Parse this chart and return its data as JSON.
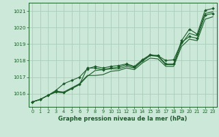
{
  "title": "Graphe pression niveau de la mer (hPa)",
  "bg_color": "#cce8d8",
  "grid_color": "#aaccb8",
  "line_color": "#1a5c28",
  "marker_color": "#1a5c28",
  "xlim": [
    -0.5,
    23.5
  ],
  "ylim": [
    1015.2,
    1021.5
  ],
  "yticks": [
    1016,
    1017,
    1018,
    1019,
    1020,
    1021
  ],
  "xticks": [
    0,
    1,
    2,
    3,
    4,
    5,
    6,
    7,
    8,
    9,
    10,
    11,
    12,
    13,
    14,
    15,
    16,
    17,
    18,
    19,
    20,
    21,
    22,
    23
  ],
  "series": [
    [
      1015.5,
      1015.65,
      1015.9,
      1016.1,
      1016.05,
      1016.3,
      1016.55,
      1017.55,
      1017.55,
      1017.45,
      1017.55,
      1017.6,
      1017.75,
      1017.6,
      1018.0,
      1018.35,
      1018.3,
      1017.8,
      1017.8,
      1019.2,
      1019.9,
      1019.6,
      1021.05,
      1021.15
    ],
    [
      1015.5,
      1015.65,
      1015.9,
      1016.1,
      1016.05,
      1016.3,
      1016.55,
      1017.05,
      1017.4,
      1017.45,
      1017.5,
      1017.5,
      1017.65,
      1017.55,
      1017.95,
      1018.3,
      1018.25,
      1017.75,
      1017.75,
      1019.0,
      1019.65,
      1019.5,
      1020.85,
      1020.95
    ],
    [
      1015.5,
      1015.65,
      1015.9,
      1016.15,
      1016.1,
      1016.35,
      1016.6,
      1017.1,
      1017.1,
      1017.15,
      1017.35,
      1017.4,
      1017.55,
      1017.45,
      1017.85,
      1018.15,
      1018.1,
      1017.65,
      1017.65,
      1018.85,
      1019.3,
      1019.2,
      1020.5,
      1020.65
    ],
    [
      1015.5,
      1015.65,
      1015.9,
      1016.2,
      1016.6,
      1016.8,
      1017.0,
      1017.5,
      1017.65,
      1017.55,
      1017.65,
      1017.7,
      1017.8,
      1017.65,
      1018.05,
      1018.35,
      1018.3,
      1018.0,
      1018.05,
      1019.1,
      1019.45,
      1019.35,
      1020.75,
      1020.85
    ]
  ],
  "has_markers": [
    true,
    false,
    false,
    true
  ],
  "label_fontsize": 5.2,
  "xlabel_fontsize": 6.0,
  "tick_fontsize": 4.8
}
